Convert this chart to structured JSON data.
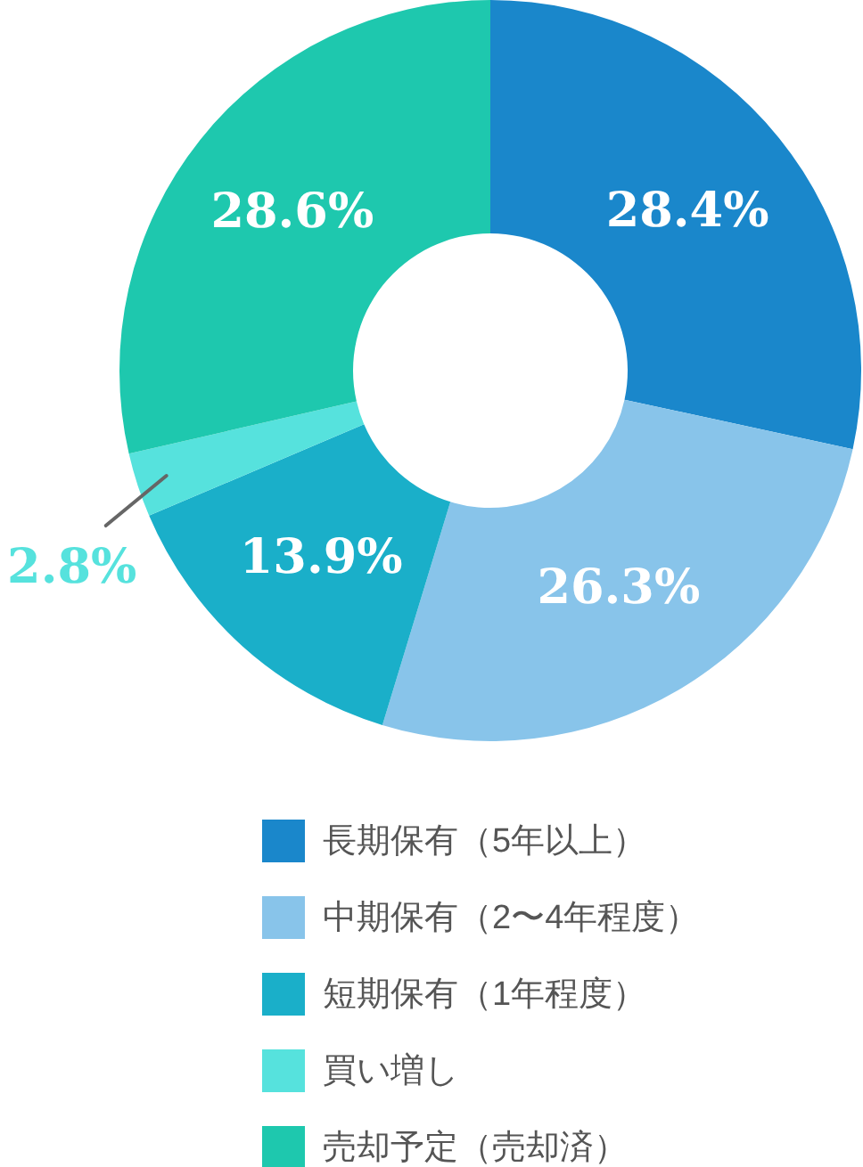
{
  "chart_data": {
    "type": "donut",
    "categories": [
      "長期保有（5年以上）",
      "中期保有（2〜4年程度）",
      "短期保有（1年程度）",
      "買い増し",
      "売却予定（売却済）"
    ],
    "values": [
      28.4,
      26.3,
      13.9,
      2.8,
      28.6
    ],
    "colors": [
      "#1a87cb",
      "#88c4ea",
      "#1aafc9",
      "#56e2dd",
      "#1ec8ae"
    ],
    "value_labels": [
      "28.4%",
      "26.3%",
      "13.9%",
      "2.8%",
      "28.6%"
    ],
    "legend": "bottom"
  }
}
